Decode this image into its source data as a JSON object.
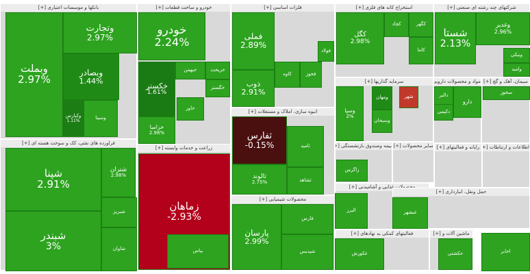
{
  "chart_data": {
    "type": "treemap",
    "sectors": [
      {
        "title": "بانکها و موسسات اعتباری [+]"
      },
      {
        "title": "خودرو و ساخت قطعات [+]"
      },
      {
        "title": "فلزات اساسی [+]"
      },
      {
        "title": "استخراج کانه های فلزی [+]"
      },
      {
        "title": "شرکتهای چند رشته ای صنعتی [+]"
      },
      {
        "title": "سرمایه گذاریها [+]"
      },
      {
        "title": "مواد و محصولات دارویی [+]"
      },
      {
        "title": "سیمان، آهک و گچ [+]"
      },
      {
        "title": "انبوه سازی، املاک و مستغلات [+]"
      },
      {
        "title": "فراورده های نفتی، کک و سوخت هسته ای [+]"
      },
      {
        "title": "زراعت و خدمات وابسته [+]"
      },
      {
        "title": "بیمه وصندوق بازنشستگی [+]"
      },
      {
        "title": "سایر محصولات [+]"
      },
      {
        "title": "رایانه و فعالیتهای [+]"
      },
      {
        "title": "اطلاعات و ارتباطات [+]"
      },
      {
        "title": "محصولات شیمیایی [+]"
      },
      {
        "title": "محصولات غذایی و آشامیدنی [+]"
      },
      {
        "title": "حمل ونقل، انبارداری [+]"
      },
      {
        "title": "فعالیتهای کمکی به نهادهای [+]"
      },
      {
        "title": "ماشین آلات و [+]"
      }
    ],
    "tiles": [
      {
        "symbol": "وبملت",
        "change": "2.97%",
        "value": 2.97,
        "color": "#2da31f"
      },
      {
        "symbol": "وتجارت",
        "change": "2.97%",
        "value": 2.97,
        "color": "#2da31f"
      },
      {
        "symbol": "وبصادر",
        "change": "1.44%",
        "value": 1.44,
        "color": "#1f8b16"
      },
      {
        "symbol": "وکپارس",
        "change": "1.11%",
        "value": 1.11,
        "color": "#1b7d14"
      },
      {
        "symbol": "وسینا",
        "change": "",
        "color": "#2da31f"
      },
      {
        "symbol": "خودرو",
        "change": "2.24%",
        "value": 2.24,
        "color": "#2da31f"
      },
      {
        "symbol": "خکستر",
        "change": "1.61%",
        "value": 1.61,
        "color": "#1a7a13"
      },
      {
        "symbol": "خزامیا",
        "change": "2.98%",
        "value": 2.98,
        "color": "#2da31f"
      },
      {
        "symbol": "خبهمن",
        "change": "",
        "color": "#2da31f"
      },
      {
        "symbol": "خریخت",
        "change": "",
        "color": "#2da31f"
      },
      {
        "symbol": "خگستر",
        "change": "",
        "color": "#2da31f"
      },
      {
        "symbol": "خاور",
        "change": "",
        "color": "#2da31f"
      },
      {
        "symbol": "فملی",
        "change": "2.89%",
        "value": 2.89,
        "color": "#2da31f"
      },
      {
        "symbol": "فولاد",
        "change": "",
        "color": "#2da31f"
      },
      {
        "symbol": "ذوب",
        "change": "2.91%",
        "value": 2.91,
        "color": "#2da31f"
      },
      {
        "symbol": "کاوه",
        "change": "",
        "color": "#2da31f"
      },
      {
        "symbol": "فخوز",
        "change": "",
        "color": "#2da31f"
      },
      {
        "symbol": "کگل",
        "change": "2.98%",
        "value": 2.98,
        "color": "#2da31f"
      },
      {
        "symbol": "کچاد",
        "change": "",
        "color": "#2da31f"
      },
      {
        "symbol": "کاما",
        "change": "",
        "color": "#2da31f"
      },
      {
        "symbol": "کگهر",
        "change": "",
        "color": "#2da31f"
      },
      {
        "symbol": "شستا",
        "change": "2.13%",
        "value": 2.13,
        "color": "#2da31f"
      },
      {
        "symbol": "وغدیر",
        "change": "2.96%",
        "value": 2.96,
        "color": "#2da31f"
      },
      {
        "symbol": "ونیکی",
        "change": "",
        "color": "#2da31f"
      },
      {
        "symbol": "وامید",
        "change": "",
        "color": "#2da31f"
      },
      {
        "symbol": "وسپا",
        "change": "2%",
        "value": 2,
        "color": "#2da31f"
      },
      {
        "symbol": "ومهان",
        "change": "",
        "color": "#1f8b16"
      },
      {
        "symbol": "شهر",
        "change": "",
        "color": "#c0392b"
      },
      {
        "symbol": "وسبحان",
        "change": "",
        "color": "#2da31f"
      },
      {
        "symbol": "دارو",
        "change": "",
        "color": "#2da31f"
      },
      {
        "symbol": "دالبر",
        "change": "",
        "color": "#2da31f"
      },
      {
        "symbol": "دکیمی",
        "change": "",
        "color": "#2da31f"
      },
      {
        "symbol": "سخوز",
        "change": "",
        "color": "#2da31f"
      },
      {
        "symbol": "ثفارس",
        "change": "-0.15%",
        "value": -0.15,
        "color": "#4a0f0f"
      },
      {
        "symbol": "ثالوند",
        "change": "2.75%",
        "value": 2.75,
        "color": "#2da31f"
      },
      {
        "symbol": "ثامید",
        "change": "",
        "color": "#2da31f"
      },
      {
        "symbol": "ثشاهد",
        "change": "",
        "color": "#2da31f"
      },
      {
        "symbol": "شپنا",
        "change": "2.91%",
        "value": 2.91,
        "color": "#2da31f"
      },
      {
        "symbol": "شبندر",
        "change": "3%",
        "value": 3,
        "color": "#2da31f"
      },
      {
        "symbol": "شتران",
        "change": "2.98%",
        "value": 2.98,
        "color": "#2da31f"
      },
      {
        "symbol": "شبریز",
        "change": "",
        "color": "#2da31f"
      },
      {
        "symbol": "شاوان",
        "change": "",
        "color": "#2da31f"
      },
      {
        "symbol": "زماهان",
        "change": "-2.93%",
        "value": -2.93,
        "color": "#b3001b"
      },
      {
        "symbol": "بپاس",
        "change": "",
        "color": "#2da31f"
      },
      {
        "symbol": "پارسان",
        "change": "2.99%",
        "value": 2.99,
        "color": "#2da31f"
      },
      {
        "symbol": "فارس",
        "change": "",
        "color": "#2da31f"
      },
      {
        "symbol": "شپدیس",
        "change": "",
        "color": "#2da31f"
      },
      {
        "symbol": "زاگرس",
        "change": "",
        "color": "#2da31f"
      },
      {
        "symbol": "البرز",
        "change": "",
        "color": "#2da31f"
      },
      {
        "symbol": "غبشهر",
        "change": "",
        "color": "#2da31f"
      },
      {
        "symbol": "غکورش",
        "change": "",
        "color": "#2da31f"
      },
      {
        "symbol": "حکشتی",
        "change": "",
        "color": "#2da31f"
      },
      {
        "symbol": "اخابر",
        "change": "",
        "color": "#2da31f"
      },
      {
        "symbol": "ولنوبه",
        "change": "",
        "color": "#2da31f"
      }
    ]
  }
}
